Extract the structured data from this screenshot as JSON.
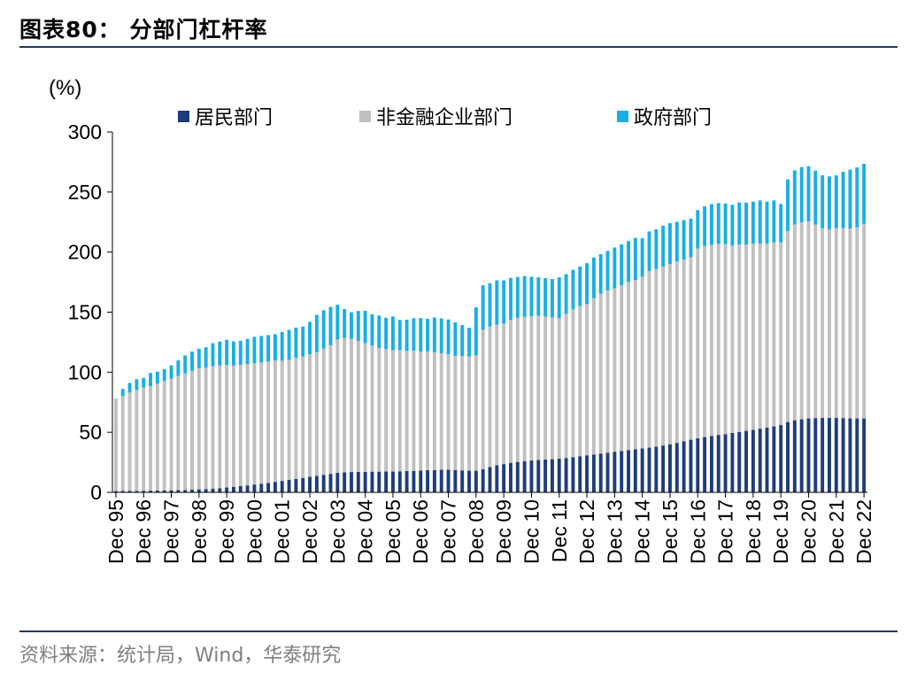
{
  "figure": {
    "title": "图表80： 分部门杠杆率",
    "source": "资料来源：统计局，Wind，华泰研究"
  },
  "chart_data": {
    "type": "bar",
    "stacked": true,
    "unit_label": "(%)",
    "ylim": [
      0,
      300
    ],
    "yticks": [
      0,
      50,
      100,
      150,
      200,
      250,
      300
    ],
    "grid": false,
    "legend_position": "top",
    "colors": {
      "household": "#1f3c7a",
      "nonfinancial_corporate": "#c0c0c0",
      "government": "#1aaee6"
    },
    "x": [
      "Dec 95",
      "Mar 96",
      "Jun 96",
      "Sep 96",
      "Dec 96",
      "Mar 97",
      "Jun 97",
      "Sep 97",
      "Dec 97",
      "Mar 98",
      "Jun 98",
      "Sep 98",
      "Dec 98",
      "Mar 99",
      "Jun 99",
      "Sep 99",
      "Dec 99",
      "Mar 00",
      "Jun 00",
      "Sep 00",
      "Dec 00",
      "Mar 01",
      "Jun 01",
      "Sep 01",
      "Dec 01",
      "Mar 02",
      "Jun 02",
      "Sep 02",
      "Dec 02",
      "Mar 03",
      "Jun 03",
      "Sep 03",
      "Dec 03",
      "Mar 04",
      "Jun 04",
      "Sep 04",
      "Dec 04",
      "Mar 05",
      "Jun 05",
      "Sep 05",
      "Dec 05",
      "Mar 06",
      "Jun 06",
      "Sep 06",
      "Dec 06",
      "Mar 07",
      "Jun 07",
      "Sep 07",
      "Dec 07",
      "Mar 08",
      "Jun 08",
      "Sep 08",
      "Dec 08",
      "Mar 09",
      "Jun 09",
      "Sep 09",
      "Dec 09",
      "Mar 10",
      "Jun 10",
      "Sep 10",
      "Dec 10",
      "Mar 11",
      "Jun 11",
      "Sep 11",
      "Dec 11",
      "Mar 12",
      "Jun 12",
      "Sep 12",
      "Dec 12",
      "Mar 13",
      "Jun 13",
      "Sep 13",
      "Dec 13",
      "Mar 14",
      "Jun 14",
      "Sep 14",
      "Dec 14",
      "Mar 15",
      "Jun 15",
      "Sep 15",
      "Dec 15",
      "Mar 16",
      "Jun 16",
      "Sep 16",
      "Dec 16",
      "Mar 17",
      "Jun 17",
      "Sep 17",
      "Dec 17",
      "Mar 18",
      "Jun 18",
      "Sep 18",
      "Dec 18",
      "Mar 19",
      "Jun 19",
      "Sep 19",
      "Dec 19",
      "Mar 20",
      "Jun 20",
      "Sep 20",
      "Dec 20",
      "Mar 21",
      "Jun 21",
      "Sep 21",
      "Dec 21",
      "Mar 22",
      "Jun 22",
      "Sep 22",
      "Dec 22"
    ],
    "xtick_labels": [
      "Dec 95",
      "Dec 96",
      "Dec 97",
      "Dec 98",
      "Dec 99",
      "Dec 00",
      "Dec 01",
      "Dec 02",
      "Dec 03",
      "Dec 04",
      "Dec 05",
      "Dec 06",
      "Dec 07",
      "Dec 08",
      "Dec 09",
      "Dec 10",
      "Dec 11",
      "Dec 12",
      "Dec 13",
      "Dec 14",
      "Dec 15",
      "Dec 16",
      "Dec 17",
      "Dec 18",
      "Dec 19",
      "Dec 20",
      "Dec 21",
      "Dec 22"
    ],
    "series": [
      {
        "key": "household",
        "name": "居民部门",
        "values": [
          1.0,
          1.1,
          1.1,
          1.2,
          1.3,
          1.4,
          1.5,
          1.6,
          1.7,
          1.9,
          2.0,
          2.2,
          2.5,
          2.8,
          3.1,
          3.5,
          4.0,
          4.6,
          5.2,
          5.8,
          6.5,
          7.2,
          7.9,
          8.7,
          9.5,
          10.3,
          11.1,
          12.0,
          12.9,
          13.7,
          14.6,
          15.4,
          16.2,
          16.6,
          16.9,
          17.0,
          17.1,
          17.2,
          17.2,
          17.3,
          17.4,
          17.5,
          17.7,
          17.9,
          18.1,
          18.4,
          18.6,
          18.8,
          18.9,
          18.6,
          18.3,
          18.0,
          18.0,
          19.3,
          21.0,
          22.5,
          23.5,
          24.5,
          25.3,
          26.0,
          26.5,
          27.0,
          27.3,
          27.6,
          28.0,
          28.6,
          29.3,
          30.0,
          30.8,
          31.5,
          32.3,
          33.0,
          33.8,
          34.5,
          35.2,
          35.8,
          36.5,
          37.2,
          38.0,
          39.0,
          40.0,
          41.2,
          42.6,
          43.8,
          45.0,
          46.0,
          47.0,
          47.8,
          48.5,
          49.4,
          50.3,
          51.2,
          52.0,
          53.0,
          54.0,
          55.0,
          56.0,
          58.5,
          60.0,
          60.8,
          61.5,
          61.8,
          62.0,
          62.0,
          61.9,
          61.8,
          61.6,
          61.5,
          61.5
        ]
      },
      {
        "key": "nonfinancial_corporate",
        "name": "非金融企业部门",
        "values": [
          77,
          79,
          82,
          84,
          86,
          87,
          89,
          91,
          93,
          95,
          97,
          99,
          101,
          101,
          102,
          102,
          102,
          101,
          101,
          101,
          101,
          101,
          101,
          101,
          100,
          100,
          101,
          101,
          102,
          103,
          105,
          107,
          111,
          112,
          111,
          109,
          107,
          105,
          103,
          102,
          101,
          101,
          100,
          100,
          99,
          99,
          98,
          97,
          96,
          95,
          95,
          95,
          96,
          116,
          117,
          117,
          117,
          119,
          120,
          120,
          120,
          120,
          119,
          118,
          117,
          120,
          123,
          125,
          126,
          130,
          133,
          135,
          136,
          138,
          140,
          141,
          143,
          147,
          148,
          149,
          150,
          151,
          151,
          152,
          158,
          159,
          159,
          159,
          158,
          156,
          156,
          155,
          155,
          154,
          153,
          153,
          152,
          159,
          163,
          164,
          164,
          161,
          158,
          157,
          158,
          158,
          158,
          159,
          162
        ]
      },
      {
        "key": "government",
        "name": "政府部门",
        "values": [
          0,
          6,
          8,
          9,
          8,
          11,
          10,
          10,
          11,
          13,
          15,
          16,
          16,
          17,
          19,
          20,
          21,
          20,
          20,
          21,
          22,
          22,
          22,
          22,
          24,
          25,
          25,
          25,
          27,
          31,
          32,
          32,
          29,
          24,
          22,
          25,
          27,
          26,
          27,
          26,
          28,
          25,
          26,
          27,
          28,
          27,
          29,
          29,
          29,
          28,
          26,
          24,
          40,
          37,
          36,
          37,
          36,
          35,
          34,
          34,
          33,
          32,
          32,
          32,
          34,
          33,
          33,
          33,
          34,
          34,
          33,
          33,
          34,
          34,
          34,
          35,
          32,
          33,
          33,
          34,
          34,
          33,
          33,
          32,
          32,
          33,
          34,
          34,
          34,
          34,
          35,
          35,
          35,
          36,
          35,
          35,
          32,
          43,
          45,
          46,
          46,
          45,
          44,
          44,
          44,
          47,
          49,
          50,
          50
        ]
      }
    ]
  }
}
